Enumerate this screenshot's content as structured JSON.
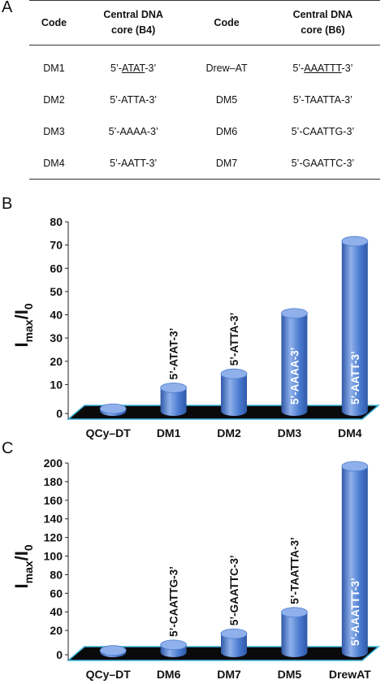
{
  "panels": {
    "a": "A",
    "b": "B",
    "c": "C"
  },
  "table": {
    "headers": [
      "Code",
      "Central DNA core (B4)",
      "Code",
      "Central DNA core (B6)"
    ],
    "header_lines": [
      [
        "Code"
      ],
      [
        "Central DNA",
        "core (B4)"
      ],
      [
        "Code"
      ],
      [
        "Central  DNA",
        "core (B6)"
      ]
    ],
    "rows": [
      {
        "code1": "DM1",
        "seq1_pre": "5’-",
        "seq1_core": "ATAT",
        "seq1_post": "-3’",
        "code2": "Drew–AT",
        "seq2_pre": "5’-",
        "seq2_core": "AAATTT",
        "seq2_post": "-3’"
      },
      {
        "code1": "DM2",
        "seq1_pre": "5’-",
        "seq1_core": "ATTA",
        "seq1_post": "-3’",
        "code2": "DM5",
        "seq2_pre": "5’-",
        "seq2_core": "TAATTA",
        "seq2_post": "-3’"
      },
      {
        "code1": "DM3",
        "seq1_pre": "5’-",
        "seq1_core": "AAAA",
        "seq1_post": "-3’",
        "code2": "DM6",
        "seq2_pre": "5’-",
        "seq2_core": "CAATTG",
        "seq2_post": "-3’"
      },
      {
        "code1": "DM4",
        "seq1_pre": "5’-",
        "seq1_core": "AATT",
        "seq1_post": "-3’",
        "code2": "DM7",
        "seq2_pre": "5’-",
        "seq2_core": "GAATTC",
        "seq2_post": "-3’"
      }
    ],
    "underlined": [
      [
        true,
        true
      ],
      [
        false,
        false
      ],
      [
        false,
        false
      ],
      [
        false,
        false
      ]
    ]
  },
  "colors": {
    "bar": "#4a7bd0",
    "bar_light": "#8fb0ea",
    "bar_dark": "#2f58a8",
    "floor": "#0a0a0a",
    "floor_edge": "#3fb8e0",
    "text": "#111111"
  },
  "chart_data": [
    {
      "type": "bar",
      "ylabel_main": "I",
      "ylabel_sub1": "max",
      "ylabel_mid": "/I",
      "ylabel_sub2": "0",
      "ylim": [
        0,
        80
      ],
      "yticks": [
        "0",
        "10",
        "20",
        "30",
        "40",
        "50",
        "60",
        "70",
        "80"
      ],
      "ytick_values": [
        0,
        10,
        20,
        30,
        40,
        50,
        60,
        70,
        80
      ],
      "categories": [
        "QCy–DT",
        "DM1",
        "DM2",
        "DM3",
        "DM4"
      ],
      "values": [
        1,
        10,
        16,
        42,
        73
      ],
      "bar_labels": [
        "",
        "5’-ATAT-3’",
        "5’-ATTA-3’",
        "5’-AAAA-3’",
        "5’-AATT-3’"
      ],
      "label_inside": [
        false,
        false,
        false,
        true,
        true
      ],
      "grid": false,
      "bar_style": "3d-cylinder"
    },
    {
      "type": "bar",
      "ylabel_main": "I",
      "ylabel_sub1": "max",
      "ylabel_mid": "/I",
      "ylabel_sub2": "0",
      "ylim": [
        0,
        200
      ],
      "yticks": [
        "0",
        "20",
        "40",
        "60",
        "80",
        "100",
        "120",
        "140",
        "160",
        "180",
        "200"
      ],
      "ytick_values": [
        0,
        20,
        40,
        60,
        80,
        100,
        120,
        140,
        160,
        180,
        200
      ],
      "categories": [
        "QCy–DT",
        "DM6",
        "DM7",
        "DM5",
        "DrewAT"
      ],
      "values": [
        2,
        8,
        20,
        43,
        200
      ],
      "bar_labels": [
        "",
        "5’-CAATTG-3’",
        "5’-GAATTC-3’",
        "5’-TAATTA-3’",
        "5’-AAATTT-3’"
      ],
      "label_inside": [
        false,
        false,
        false,
        false,
        true
      ],
      "grid": false,
      "bar_style": "3d-cylinder"
    }
  ]
}
